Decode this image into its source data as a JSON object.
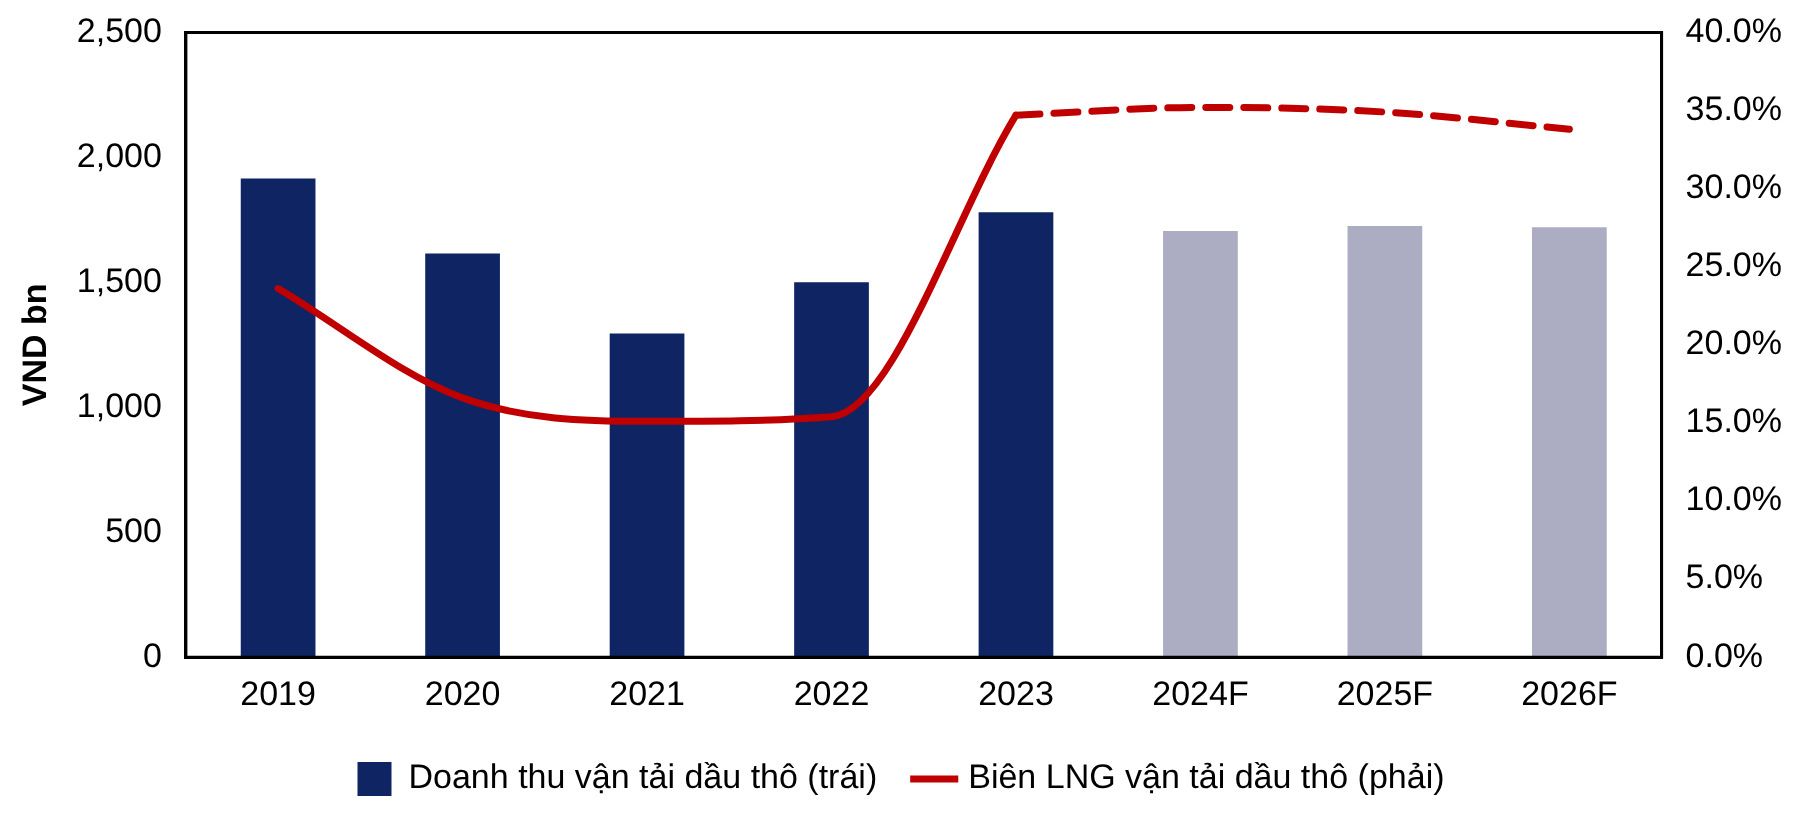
{
  "chart_data": {
    "type": "bar",
    "ylabel": "VND bn",
    "categories": [
      "2019",
      "2020",
      "2021",
      "2022",
      "2023",
      "2024F",
      "2025F",
      "2026F"
    ],
    "series": [
      {
        "name": "Doanh thu vận tải dầu thô (trái)",
        "color": "#0f2462",
        "colors": [
          "#0f2462",
          "#0f2462",
          "#0f2462",
          "#0f2462",
          "#0f2462",
          "#acadc2",
          "#acadc2",
          "#acadc2"
        ],
        "values": [
          1915,
          1615,
          1295,
          1500,
          1780,
          1705,
          1725,
          1720
        ]
      },
      {
        "name": "Biên LNG vận tải dầu thô (phải)",
        "type": "line",
        "axis": "y2",
        "color": "#c00000",
        "line_style": "solid",
        "values": [
          23.6,
          16.6,
          15.1,
          15.4,
          34.7,
          null,
          null,
          null
        ]
      },
      {
        "type": "line",
        "axis": "y2",
        "color": "#c00000",
        "line_style": "dashed",
        "values": [
          null,
          null,
          null,
          null,
          34.7,
          35.2,
          34.9,
          33.8
        ]
      }
    ],
    "ylim": [
      0,
      2500
    ],
    "yticks": [
      {
        "value": 0,
        "label": "0"
      },
      {
        "value": 500,
        "label": "500"
      },
      {
        "value": 1000,
        "label": "1,000"
      },
      {
        "value": 1500,
        "label": "1,500"
      },
      {
        "value": 2000,
        "label": "2,000"
      },
      {
        "value": 2500,
        "label": "2,500"
      }
    ],
    "y2lim": [
      0,
      40
    ],
    "y2ticks": [
      {
        "value": 0,
        "label": "0.0%"
      },
      {
        "value": 5,
        "label": "5.0%"
      },
      {
        "value": 10,
        "label": "10.0%"
      },
      {
        "value": 15,
        "label": "15.0%"
      },
      {
        "value": 20,
        "label": "20.0%"
      },
      {
        "value": 25,
        "label": "25.0%"
      },
      {
        "value": 30,
        "label": "30.0%"
      },
      {
        "value": 35,
        "label": "35.0%"
      },
      {
        "value": 40,
        "label": "40.0%"
      }
    ],
    "grid": false,
    "legend": "bottom"
  }
}
